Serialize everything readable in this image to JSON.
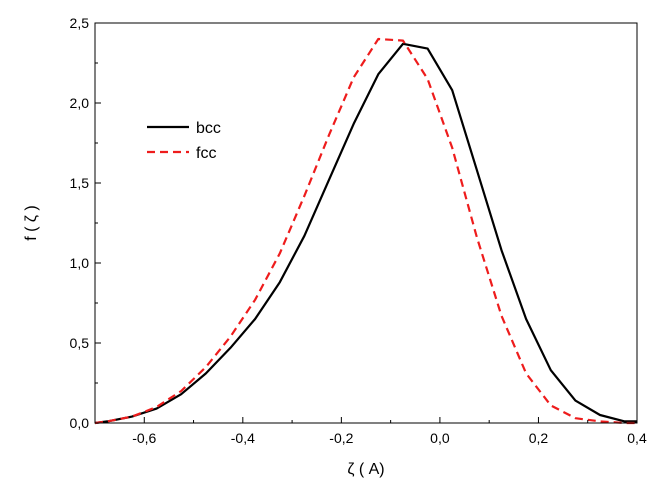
{
  "chart_data": {
    "type": "line",
    "xlabel": "ζ ( A)",
    "ylabel": "f ( ζ )",
    "xlim": [
      -0.7,
      0.4
    ],
    "ylim": [
      0.0,
      2.5
    ],
    "xticks": [
      -0.6,
      -0.4,
      -0.2,
      0.0,
      0.2,
      0.4
    ],
    "xtick_labels": [
      "-0,6",
      "-0,4",
      "-0,2",
      "0,0",
      "0,2",
      "0,4"
    ],
    "yticks": [
      0.0,
      0.5,
      1.0,
      1.5,
      2.0,
      2.5
    ],
    "ytick_labels": [
      "0,0",
      "0,5",
      "1,0",
      "1,5",
      "2,0",
      "2,5"
    ],
    "grid": false,
    "legend": "upper-left",
    "series": [
      {
        "name": "bcc",
        "color": "#000000",
        "style": "solid",
        "x": [
          -0.7,
          -0.675,
          -0.625,
          -0.575,
          -0.525,
          -0.475,
          -0.425,
          -0.375,
          -0.325,
          -0.275,
          -0.225,
          -0.175,
          -0.125,
          -0.075,
          -0.025,
          0.025,
          0.075,
          0.125,
          0.175,
          0.225,
          0.275,
          0.325,
          0.375,
          0.4
        ],
        "values": [
          0.0,
          0.01,
          0.04,
          0.09,
          0.18,
          0.31,
          0.47,
          0.65,
          0.88,
          1.17,
          1.52,
          1.87,
          2.18,
          2.37,
          2.34,
          2.08,
          1.58,
          1.08,
          0.65,
          0.33,
          0.14,
          0.05,
          0.01,
          0.01
        ]
      },
      {
        "name": "fcc",
        "color": "#ee1c1c",
        "style": "dashed",
        "x": [
          -0.7,
          -0.675,
          -0.625,
          -0.575,
          -0.525,
          -0.475,
          -0.425,
          -0.375,
          -0.325,
          -0.275,
          -0.225,
          -0.175,
          -0.125,
          -0.075,
          -0.025,
          0.025,
          0.075,
          0.125,
          0.175,
          0.225,
          0.275,
          0.325,
          0.375,
          0.4
        ],
        "values": [
          0.0,
          0.01,
          0.04,
          0.1,
          0.2,
          0.35,
          0.54,
          0.77,
          1.06,
          1.42,
          1.8,
          2.16,
          2.4,
          2.39,
          2.15,
          1.72,
          1.16,
          0.67,
          0.31,
          0.11,
          0.03,
          0.01,
          0.0,
          0.0
        ]
      }
    ]
  }
}
